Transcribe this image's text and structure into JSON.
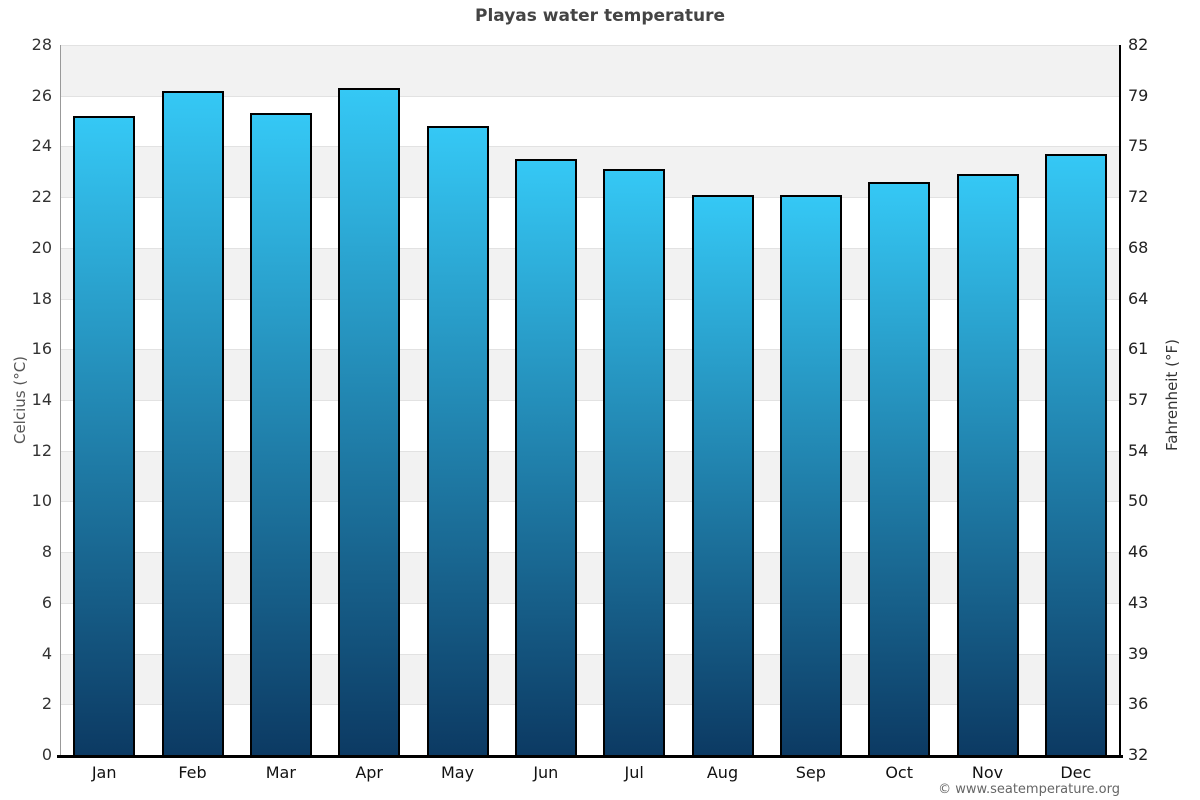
{
  "chart_data": {
    "type": "bar",
    "title": "Playas water temperature",
    "categories": [
      "Jan",
      "Feb",
      "Mar",
      "Apr",
      "May",
      "Jun",
      "Jul",
      "Aug",
      "Sep",
      "Oct",
      "Nov",
      "Dec"
    ],
    "values": [
      25.2,
      26.2,
      25.3,
      26.3,
      24.8,
      23.5,
      23.1,
      22.1,
      22.1,
      22.6,
      22.9,
      23.7
    ],
    "ylabel_left": "Celcius (°C)",
    "ylabel_right": "Fahrenheit (°F)",
    "yticks_celsius": [
      "28",
      "26",
      "24",
      "22",
      "20",
      "18",
      "16",
      "14",
      "12",
      "10",
      "8",
      "6",
      "4",
      "2",
      "0"
    ],
    "yticks_fahrenheit": [
      "82",
      "79",
      "75",
      "72",
      "68",
      "64",
      "61",
      "57",
      "54",
      "50",
      "46",
      "43",
      "39",
      "36",
      "32"
    ],
    "ylim": [
      0,
      28
    ],
    "grid": "horizontal-bands",
    "legend": "none",
    "colors": {
      "bar_gradient_top": "#35c8f5",
      "bar_gradient_bottom": "#0c3a63",
      "bar_border": "#000000",
      "band_shaded": "#f2f2f2",
      "band_plain": "#ffffff",
      "gridline": "#e2e2e2",
      "left_axis_line": "#999999",
      "right_axis_line": "#000000",
      "bottom_axis_line": "#000000",
      "title_text": "#444444",
      "tick_text": "#333333",
      "footer_text": "#666666"
    }
  },
  "footer": {
    "credit": "© www.seatemperature.org"
  }
}
